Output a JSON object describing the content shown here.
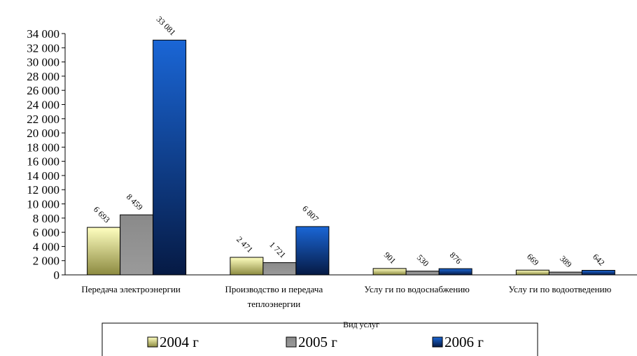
{
  "chart_data": {
    "type": "bar",
    "xlabel": "Вид услуг",
    "ylabel": "",
    "ylim": [
      0,
      34000
    ],
    "yticks": [
      0,
      2000,
      4000,
      6000,
      8000,
      10000,
      12000,
      14000,
      16000,
      18000,
      20000,
      22000,
      24000,
      26000,
      28000,
      30000,
      32000,
      34000
    ],
    "ytick_labels": [
      "0",
      "2 000",
      "4 000",
      "6 000",
      "8 000",
      "10 000",
      "12 000",
      "14 000",
      "16 000",
      "18 000",
      "20 000",
      "22 000",
      "24 000",
      "26 000",
      "28 000",
      "30 000",
      "32 000",
      "34 000"
    ],
    "categories": [
      [
        "Передача электроэнергии"
      ],
      [
        "Производство и передача",
        "теплоэнергии"
      ],
      [
        "Услу ги по водоснабжению"
      ],
      [
        "Услу ги по водоотведению"
      ]
    ],
    "series": [
      {
        "name": "2004 г",
        "values": [
          6693,
          2471,
          901,
          669
        ],
        "labels": [
          "6 693",
          "2 471",
          "901",
          "669"
        ],
        "color_top": "#ffffc0",
        "color_bottom": "#8c8a40"
      },
      {
        "name": "2005 г",
        "values": [
          8459,
          1721,
          530,
          389
        ],
        "labels": [
          "8 459",
          "1 721",
          "530",
          "389"
        ],
        "color_top": "#8a8a8a",
        "color_bottom": "#9a9a9a"
      },
      {
        "name": "2006 г",
        "values": [
          33081,
          6807,
          876,
          642
        ],
        "labels": [
          "33 081",
          "6 807",
          "876",
          "642"
        ],
        "color_top": "#1a66d6",
        "color_bottom": "#061a44"
      }
    ],
    "grid": false,
    "legend_position": "bottom"
  }
}
